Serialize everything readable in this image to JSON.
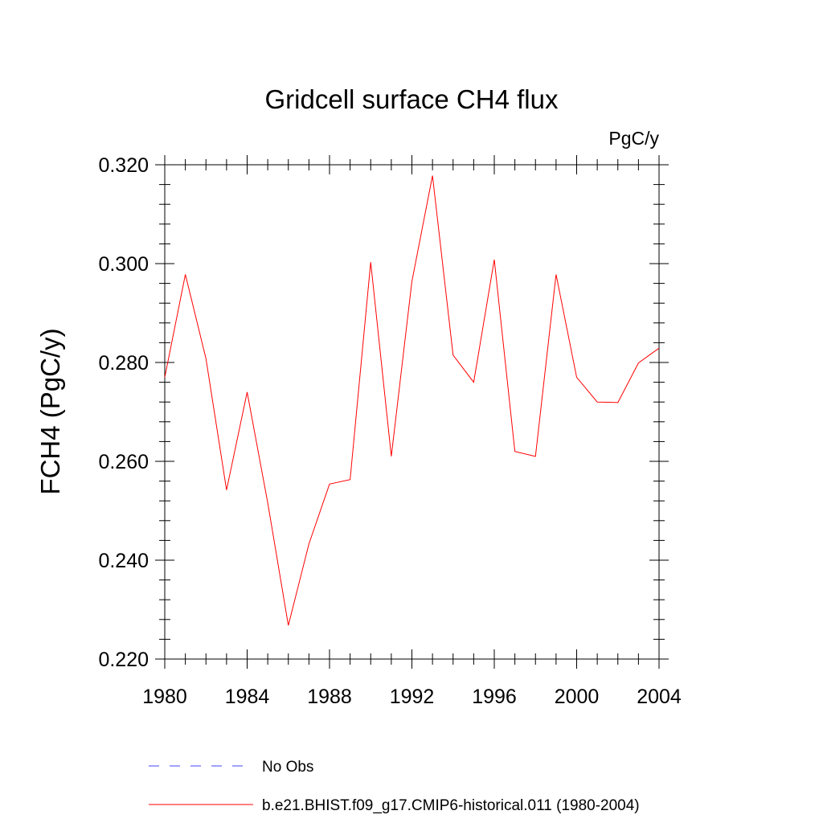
{
  "chart_data": {
    "type": "line",
    "title": "Gridcell surface CH4 flux",
    "units_label": "PgC/y",
    "ylabel": "FCH4  (PgC/y)",
    "xlabel": "",
    "xlim": [
      1980,
      2004
    ],
    "ylim": [
      0.22,
      0.32
    ],
    "x_ticks": [
      "1980",
      "1984",
      "1988",
      "1992",
      "1996",
      "2000",
      "2004"
    ],
    "y_ticks": [
      "0.220",
      "0.240",
      "0.260",
      "0.280",
      "0.300",
      "0.320"
    ],
    "x": [
      1980,
      1981,
      1982,
      1983,
      1984,
      1985,
      1986,
      1987,
      1988,
      1989,
      1990,
      1991,
      1992,
      1993,
      1994,
      1995,
      1996,
      1997,
      1998,
      1999,
      2000,
      2001,
      2002,
      2003,
      2004
    ],
    "series": [
      {
        "name": "b.e21.BHIST.f09_g17.CMIP6-historical.011 (1980-2004)",
        "color": "#ff0000",
        "style": "solid",
        "values": [
          0.277,
          0.2978,
          0.2808,
          0.2542,
          0.274,
          0.2516,
          0.2268,
          0.2433,
          0.2554,
          0.2563,
          0.3003,
          0.261,
          0.2964,
          0.3178,
          0.2815,
          0.276,
          0.3008,
          0.262,
          0.261,
          0.2978,
          0.277,
          0.272,
          0.2719,
          0.2799,
          0.2829
        ]
      }
    ],
    "legend": [
      {
        "label": "No Obs",
        "color": "#4444ff",
        "style": "dashed"
      },
      {
        "label": "b.e21.BHIST.f09_g17.CMIP6-historical.011 (1980-2004)",
        "color": "#ff0000",
        "style": "solid"
      }
    ],
    "grid": false,
    "legend_position": "bottom"
  }
}
